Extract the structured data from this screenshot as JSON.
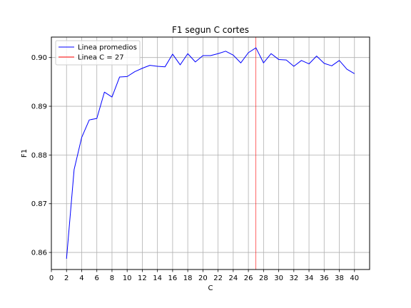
{
  "chart_data": {
    "type": "line",
    "title": "F1 segun C cortes",
    "xlabel": "C",
    "ylabel": "F1",
    "xlim": [
      0,
      42
    ],
    "ylim": [
      0.8565,
      0.9042
    ],
    "xticks": [
      0,
      2,
      4,
      6,
      8,
      10,
      12,
      14,
      16,
      18,
      20,
      22,
      24,
      26,
      28,
      30,
      32,
      34,
      36,
      38,
      40
    ],
    "xtick_labels": [
      "0",
      "2",
      "4",
      "6",
      "8",
      "10",
      "12",
      "14",
      "16",
      "18",
      "20",
      "22",
      "24",
      "26",
      "28",
      "30",
      "32",
      "34",
      "36",
      "38",
      "40"
    ],
    "yticks": [
      0.86,
      0.87,
      0.88,
      0.89,
      0.9
    ],
    "ytick_labels": [
      "0.86",
      "0.87",
      "0.88",
      "0.89",
      "0.90"
    ],
    "grid": true,
    "legend_position": "top-left",
    "series": [
      {
        "name": "Linea promedios",
        "color": "#0000ff",
        "x": [
          2,
          3,
          4,
          5,
          6,
          7,
          8,
          9,
          10,
          11,
          12,
          13,
          14,
          15,
          16,
          17,
          18,
          19,
          20,
          21,
          22,
          23,
          24,
          25,
          26,
          27,
          28,
          29,
          30,
          31,
          32,
          33,
          34,
          35,
          36,
          37,
          38,
          39,
          40
        ],
        "y": [
          0.8587,
          0.877,
          0.8836,
          0.8872,
          0.8875,
          0.8929,
          0.8919,
          0.896,
          0.8961,
          0.8971,
          0.8978,
          0.8984,
          0.8982,
          0.8981,
          0.9007,
          0.8985,
          0.9008,
          0.8991,
          0.9004,
          0.9004,
          0.9008,
          0.9013,
          0.9005,
          0.8989,
          0.901,
          0.902,
          0.8989,
          0.9008,
          0.8996,
          0.8995,
          0.8982,
          0.8994,
          0.8987,
          0.9003,
          0.8988,
          0.8983,
          0.8994,
          0.8976,
          0.8967
        ]
      }
    ],
    "vline": {
      "name": "Linea C = 27",
      "x": 27,
      "color": "#ff0000"
    }
  }
}
